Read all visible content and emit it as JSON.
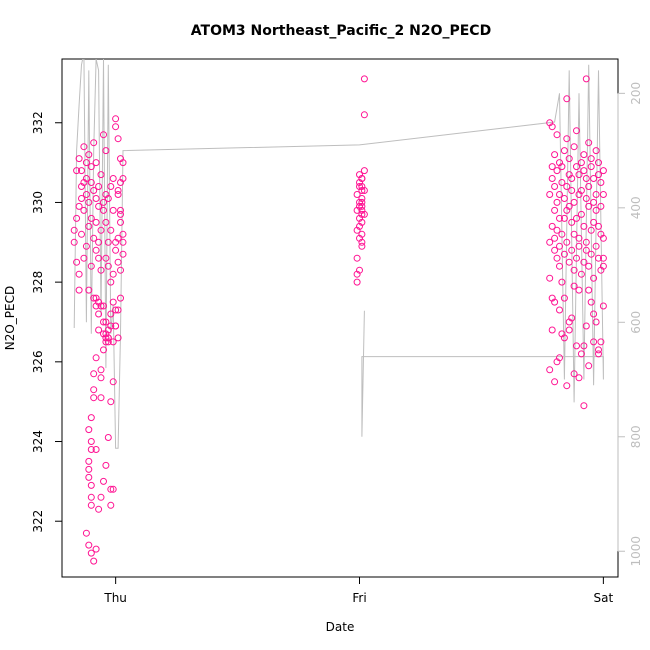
{
  "chart_data": {
    "type": "scatter",
    "title": "ATOM3 Northeast_Pacific_2 N2O_PECD",
    "xlabel": "Date",
    "ylabel": "N2O_PECD",
    "x_ticks": [
      "Thu",
      "Fri",
      "Sat"
    ],
    "y_ticks": [
      322,
      324,
      326,
      328,
      330,
      332
    ],
    "ylim": [
      320.6,
      333.6
    ],
    "right_axis": {
      "label": "",
      "ticks": [
        200,
        400,
        600,
        800,
        1000
      ],
      "reversed": true,
      "lim": [
        1045,
        140
      ]
    },
    "grid": false,
    "colors": {
      "points": "#ff1493",
      "profile_line": "#bebebe",
      "axis": "#000000",
      "right_axis": "#bebebe"
    },
    "series": [
      {
        "x": [
          -0.17,
          -0.17,
          -0.16,
          -0.16,
          -0.16,
          -0.15,
          -0.15,
          -0.15,
          -0.15,
          -0.14,
          -0.14,
          -0.14,
          -0.14,
          -0.13,
          -0.13,
          -0.13,
          -0.13,
          -0.12,
          -0.12,
          -0.12,
          -0.12,
          -0.11,
          -0.11,
          -0.11,
          -0.11,
          -0.1,
          -0.1,
          -0.1,
          -0.1,
          -0.09,
          -0.09,
          -0.09,
          -0.09,
          -0.08,
          -0.08,
          -0.08,
          -0.08,
          -0.07,
          -0.07,
          -0.07,
          -0.07,
          -0.06,
          -0.06,
          -0.06,
          -0.06,
          -0.05,
          -0.05,
          -0.05,
          -0.05,
          -0.04,
          -0.04,
          -0.04,
          -0.04,
          -0.03,
          -0.03,
          -0.03,
          -0.03,
          -0.02,
          -0.02,
          -0.02,
          -0.02,
          -0.01,
          -0.01,
          -0.01,
          -0.01,
          0.0,
          0.0,
          0.0,
          0.0,
          0.01,
          0.01,
          0.01,
          0.01,
          0.02,
          0.02,
          0.02,
          0.02,
          0.03,
          0.03,
          0.03,
          0.03,
          0.03,
          -0.1,
          -0.1,
          -0.1,
          -0.11,
          -0.11,
          -0.11,
          -0.11,
          -0.1,
          -0.1,
          -0.1,
          -0.09,
          -0.09,
          -0.09,
          -0.08,
          -0.08,
          -0.08,
          -0.08,
          -0.07,
          -0.07,
          -0.07,
          -0.06,
          -0.06,
          -0.06,
          -0.05,
          -0.05,
          -0.05,
          -0.04,
          -0.04,
          -0.04,
          -0.04,
          -0.03,
          -0.03,
          -0.03,
          -0.02,
          -0.02,
          -0.02,
          -0.01,
          -0.01,
          0.0,
          0.0,
          0.01,
          0.01,
          0.02,
          0.02,
          -0.12,
          -0.11,
          -0.1,
          -0.09,
          -0.08,
          -0.07,
          -0.06,
          -0.05,
          -0.04,
          -0.03,
          -0.02,
          -0.01,
          0.0,
          0.01,
          0.02
        ],
        "y": [
          329.0,
          329.3,
          328.5,
          329.6,
          330.8,
          331.1,
          328.2,
          327.8,
          329.9,
          330.1,
          330.4,
          329.2,
          330.8,
          328.6,
          331.4,
          330.5,
          329.8,
          330.2,
          331.0,
          328.9,
          330.6,
          329.4,
          331.2,
          330.0,
          327.8,
          330.5,
          329.6,
          330.9,
          328.4,
          329.1,
          331.5,
          330.3,
          327.6,
          328.8,
          330.1,
          329.5,
          331.0,
          329.9,
          328.6,
          330.4,
          329.0,
          327.4,
          330.7,
          329.3,
          328.3,
          331.7,
          330.0,
          329.8,
          326.7,
          330.2,
          328.6,
          329.5,
          331.3,
          328.4,
          326.6,
          330.1,
          329.0,
          328.0,
          326.9,
          329.3,
          330.4,
          328.2,
          326.5,
          329.8,
          330.6,
          329.0,
          327.3,
          326.9,
          328.8,
          330.2,
          329.1,
          326.6,
          328.5,
          329.7,
          331.1,
          328.3,
          329.5,
          330.6,
          329.0,
          328.7,
          331.0,
          329.2,
          324.6,
          324.0,
          323.8,
          324.3,
          323.5,
          323.1,
          323.3,
          322.9,
          322.6,
          322.4,
          325.1,
          325.7,
          325.3,
          323.8,
          326.1,
          327.6,
          327.4,
          327.5,
          326.8,
          327.2,
          325.6,
          325.8,
          325.1,
          326.3,
          327.0,
          327.4,
          326.5,
          326.7,
          327.0,
          326.6,
          326.5,
          326.8,
          326.6,
          327.2,
          322.8,
          322.4,
          322.8,
          327.5,
          331.9,
          332.1,
          331.6,
          330.3,
          329.8,
          330.5,
          321.7,
          321.4,
          321.2,
          321.0,
          321.3,
          322.3,
          322.6,
          323.0,
          323.4,
          324.1,
          325.0,
          325.5,
          326.9,
          327.3,
          327.6
        ],
        "name": ""
      },
      {
        "x": [
          0.99,
          0.99,
          0.99,
          0.99,
          0.99,
          0.99,
          1.0,
          1.0,
          1.0,
          1.0,
          1.0,
          1.0,
          1.0,
          1.0,
          1.0,
          1.01,
          1.01,
          1.01,
          1.01,
          1.01,
          1.01,
          1.01,
          1.01,
          1.01,
          1.01,
          1.01,
          1.01,
          1.01,
          1.02,
          1.02,
          1.02,
          1.02,
          1.02
        ],
        "y": [
          328.0,
          328.2,
          328.6,
          329.3,
          329.8,
          330.2,
          330.5,
          329.9,
          329.6,
          330.0,
          330.4,
          330.7,
          329.4,
          329.1,
          328.3,
          330.3,
          329.8,
          330.6,
          330.1,
          329.5,
          329.2,
          328.9,
          330.0,
          330.4,
          329.7,
          329.0,
          330.6,
          329.9,
          333.1,
          332.2,
          330.8,
          330.3,
          329.7
        ],
        "name": ""
      },
      {
        "x": [
          1.78,
          1.78,
          1.78,
          1.79,
          1.79,
          1.79,
          1.79,
          1.79,
          1.8,
          1.8,
          1.8,
          1.8,
          1.8,
          1.81,
          1.81,
          1.81,
          1.81,
          1.81,
          1.82,
          1.82,
          1.82,
          1.82,
          1.82,
          1.83,
          1.83,
          1.83,
          1.83,
          1.84,
          1.84,
          1.84,
          1.84,
          1.85,
          1.85,
          1.85,
          1.85,
          1.86,
          1.86,
          1.86,
          1.86,
          1.87,
          1.87,
          1.87,
          1.87,
          1.88,
          1.88,
          1.88,
          1.88,
          1.89,
          1.89,
          1.89,
          1.89,
          1.9,
          1.9,
          1.9,
          1.9,
          1.91,
          1.91,
          1.91,
          1.91,
          1.92,
          1.92,
          1.92,
          1.92,
          1.93,
          1.93,
          1.93,
          1.93,
          1.94,
          1.94,
          1.94,
          1.94,
          1.95,
          1.95,
          1.95,
          1.95,
          1.96,
          1.96,
          1.96,
          1.96,
          1.97,
          1.97,
          1.97,
          1.97,
          1.98,
          1.98,
          1.98,
          1.98,
          1.99,
          1.99,
          1.99,
          1.99,
          2.0,
          2.0,
          2.0,
          2.0,
          1.8,
          1.81,
          1.82,
          1.83,
          1.84,
          1.85,
          1.86,
          1.87,
          1.88,
          1.89,
          1.9,
          1.91,
          1.92,
          1.93,
          1.94,
          1.95,
          1.96,
          1.97,
          1.98,
          1.99,
          2.0,
          1.78,
          1.79,
          1.8,
          1.84,
          1.88,
          1.92,
          1.96,
          2.0,
          1.82,
          1.86,
          1.9,
          1.94,
          1.98,
          1.78,
          1.85,
          1.93
        ],
        "y": [
          330.2,
          329.0,
          328.1,
          331.9,
          330.6,
          329.4,
          327.6,
          330.9,
          329.8,
          328.8,
          331.2,
          330.4,
          329.1,
          328.6,
          331.7,
          330.0,
          329.3,
          330.8,
          328.4,
          330.2,
          329.6,
          331.0,
          328.9,
          330.5,
          329.2,
          328.0,
          330.9,
          329.6,
          331.3,
          330.1,
          328.7,
          330.4,
          329.0,
          331.6,
          329.8,
          330.7,
          328.5,
          329.9,
          331.1,
          330.3,
          328.8,
          329.5,
          330.6,
          331.4,
          329.2,
          330.0,
          328.3,
          330.9,
          329.6,
          331.8,
          328.6,
          330.2,
          329.1,
          330.7,
          328.9,
          331.0,
          329.7,
          330.3,
          328.2,
          330.8,
          329.4,
          331.2,
          328.5,
          330.1,
          329.0,
          330.6,
          328.8,
          331.5,
          329.9,
          330.4,
          328.4,
          329.3,
          330.9,
          328.7,
          331.1,
          330.0,
          329.5,
          328.1,
          330.6,
          329.8,
          331.3,
          328.9,
          330.2,
          329.4,
          330.7,
          328.6,
          331.0,
          329.2,
          330.5,
          328.3,
          329.9,
          330.8,
          329.1,
          328.6,
          330.2,
          325.5,
          326.0,
          327.3,
          326.7,
          327.6,
          325.4,
          326.8,
          327.1,
          325.7,
          326.4,
          327.8,
          326.2,
          324.9,
          326.9,
          325.9,
          327.5,
          326.5,
          327.0,
          326.2,
          326.5,
          327.4,
          325.8,
          326.8,
          327.5,
          326.6,
          327.9,
          326.4,
          327.2,
          328.4,
          326.1,
          327.0,
          325.6,
          327.8,
          326.3,
          332.0,
          332.6,
          333.1
        ],
        "name": ""
      }
    ],
    "profile_line": {
      "x": [
        -0.17,
        -0.16,
        -0.15,
        -0.14,
        -0.13,
        -0.12,
        -0.11,
        -0.1,
        -0.09,
        -0.08,
        -0.07,
        -0.06,
        -0.05,
        -0.04,
        -0.03,
        -0.02,
        -0.01,
        0.0,
        0.01,
        0.02,
        0.03,
        1.0,
        1.8,
        1.82,
        1.84,
        1.86,
        1.88,
        1.9,
        1.92,
        1.94,
        1.96,
        1.98,
        2.0,
        2.0,
        1.01,
        1.01,
        1.02
      ],
      "y": [
        610,
        300,
        220,
        150,
        130,
        600,
        160,
        620,
        300,
        140,
        160,
        590,
        140,
        680,
        150,
        620,
        570,
        820,
        820,
        620,
        300,
        290,
        250,
        200,
        700,
        160,
        740,
        200,
        700,
        150,
        710,
        160,
        700,
        660,
        660,
        800,
        580
      ]
    }
  }
}
